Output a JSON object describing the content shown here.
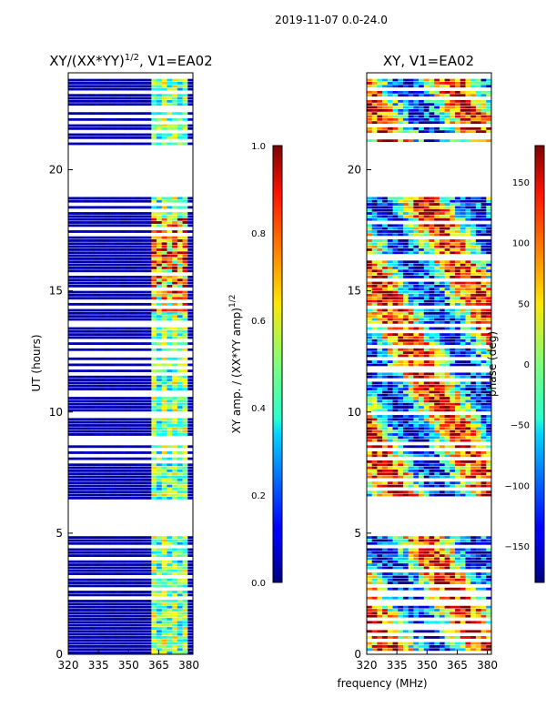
{
  "suptitle": "2019-11-07 0.0-24.0",
  "xlabel": "frequency (MHz)",
  "chart_data": [
    {
      "type": "heatmap",
      "title": "XY/(XX*YY)",
      "title_sup": "1/2",
      "title_tail": ", V1=EA02",
      "xlabel": "frequency (MHz)",
      "ylabel": "UT (hours)",
      "xlim": [
        320,
        382
      ],
      "ylim": [
        0,
        24
      ],
      "xticks": [
        320,
        335,
        350,
        365,
        380
      ],
      "yticks": [
        0,
        5,
        10,
        15,
        20
      ],
      "colorbar": {
        "label": "XY amp. / (XX*YY amp)",
        "label_sup": "1/2",
        "range": [
          0.0,
          1.0
        ],
        "ticks": [
          "0.0",
          "0.2",
          "0.4",
          "0.6",
          "0.8",
          "1.0"
        ],
        "colormap": "jet"
      }
    },
    {
      "type": "heatmap",
      "title": "XY, V1=EA02",
      "xlabel": "frequency (MHz)",
      "ylabel": "",
      "xlim": [
        320,
        382
      ],
      "ylim": [
        0,
        24
      ],
      "xticks": [
        320,
        335,
        350,
        365,
        380
      ],
      "yticks": [
        0,
        5,
        10,
        15,
        20
      ],
      "colorbar": {
        "label": "phase (deg)",
        "range": [
          -180,
          180
        ],
        "ticks": [
          "−150",
          "−100",
          "−50",
          "0",
          "50",
          "100",
          "150"
        ],
        "colormap": "jet"
      }
    }
  ]
}
